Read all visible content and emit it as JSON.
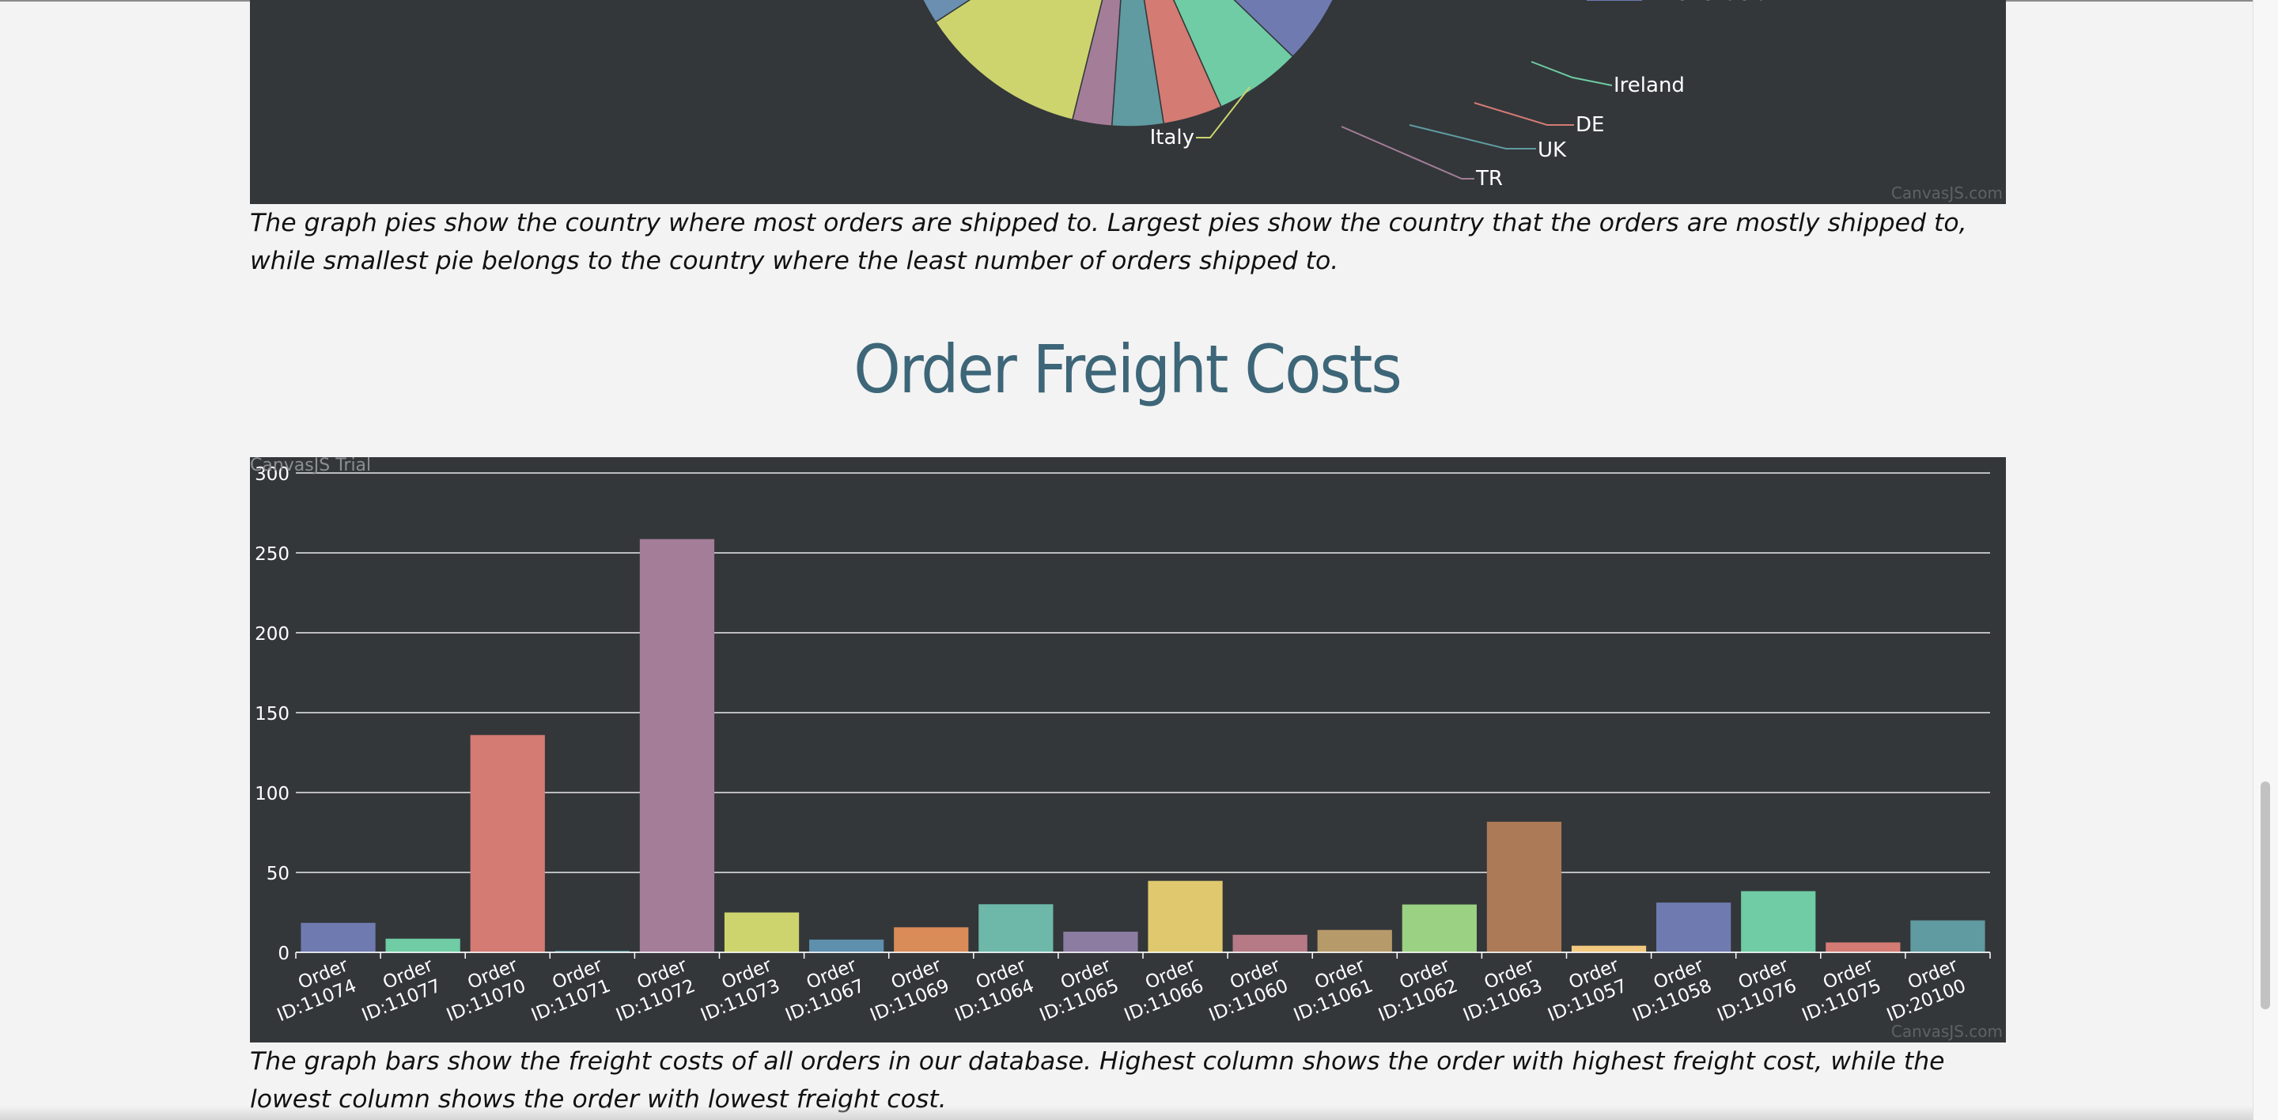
{
  "pie_section": {
    "credit": "CanvasJS.com",
    "caption": "The graph pies show the country where most orders are shipped to. Largest pies show the country that the orders are mostly shipped to, while smallest pie belongs to the country where the least number of orders shipped to."
  },
  "bar_section": {
    "title": "Order Freight Costs",
    "trial": "CanvasJS Trial",
    "credit": "CanvasJS.com",
    "caption": "The graph bars show the freight costs of all orders in our database. Highest column shows the order with highest freight cost, while the lowest column shows the order with lowest freight cost."
  },
  "chart_data": [
    {
      "type": "pie",
      "title": "",
      "partial": true,
      "visible_labels": [
        "Venezuela",
        "Ireland",
        "DE",
        "UK",
        "TR",
        "Italy"
      ],
      "slices": [
        {
          "label": "",
          "color": "#6b8fb0"
        },
        {
          "label": "Italy",
          "color": "#cdd46e"
        },
        {
          "label": "TR",
          "color": "#a47d98"
        },
        {
          "label": "UK",
          "color": "#5f9ba0"
        },
        {
          "label": "DE",
          "color": "#d47b73"
        },
        {
          "label": "Ireland",
          "color": "#6fcca4"
        },
        {
          "label": "Venezuela",
          "color": "#6f7bb0"
        }
      ]
    },
    {
      "type": "bar",
      "title": "",
      "xlabel": "",
      "ylabel": "",
      "ylim": [
        0,
        300
      ],
      "yticks": [
        0,
        50,
        100,
        150,
        200,
        250,
        300
      ],
      "grid": true,
      "categories": [
        "Order ID:11074",
        "Order ID:11077",
        "Order ID:11070",
        "Order ID:11071",
        "Order ID:11072",
        "Order ID:11073",
        "Order ID:11067",
        "Order ID:11069",
        "Order ID:11064",
        "Order ID:11065",
        "Order ID:11066",
        "Order ID:11060",
        "Order ID:11061",
        "Order ID:11062",
        "Order ID:11063",
        "Order ID:11057",
        "Order ID:11058",
        "Order ID:11076",
        "Order ID:11075",
        "Order ID:20100"
      ],
      "values": [
        18.44,
        8.53,
        136.0,
        0.93,
        258.64,
        24.95,
        7.98,
        15.67,
        30.09,
        12.91,
        44.72,
        10.98,
        14.01,
        29.93,
        81.73,
        4.13,
        31.14,
        38.28,
        6.19,
        20.0
      ],
      "colors": [
        "#6f7bb0",
        "#6fcca4",
        "#d47b73",
        "#5f9ba0",
        "#a47d98",
        "#cdd46e",
        "#5e8fad",
        "#d98b58",
        "#6db8a9",
        "#8c7ca1",
        "#e0c86e",
        "#b57a86",
        "#b79a6a",
        "#9bd183",
        "#ad7a57",
        "#f2c97e",
        "#6f7bb0",
        "#6fcca4",
        "#d47b73",
        "#5f9ba0"
      ]
    }
  ]
}
